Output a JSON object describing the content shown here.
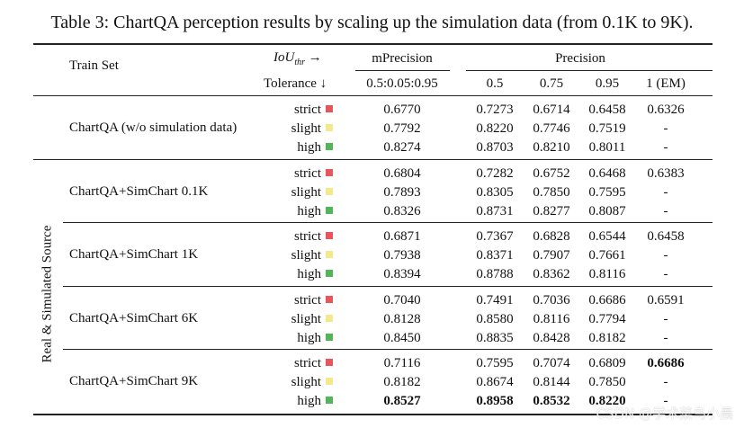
{
  "caption": "Table 3: ChartQA perception results by scaling up the simulation data (from 0.1K to 9K).",
  "header": {
    "train_set": "Train Set",
    "iou_label": "IoU",
    "iou_sub": "thr",
    "iou_arrow": "→",
    "tolerance_label": "Tolerance",
    "tolerance_arrow": "↓",
    "mprecision": "mPrecision",
    "mprecision_range": "0.5:0.05:0.95",
    "precision": "Precision",
    "p_cols": [
      "0.5",
      "0.75",
      "0.95",
      "1 (EM)"
    ]
  },
  "side_label": "Real & Simulated Source",
  "tolerance_colors": {
    "strict": "#e8555b",
    "slight": "#f3e98a",
    "high": "#53b45a"
  },
  "groups": [
    {
      "name": "ChartQA (w/o simulation data)",
      "rows": [
        {
          "tol": "strict",
          "mp": "0.6770",
          "p05": "0.7273",
          "p075": "0.6714",
          "p095": "0.6458",
          "em": "0.6326"
        },
        {
          "tol": "slight",
          "mp": "0.7792",
          "p05": "0.8220",
          "p075": "0.7746",
          "p095": "0.7519",
          "em": "-"
        },
        {
          "tol": "high",
          "mp": "0.8274",
          "p05": "0.8703",
          "p075": "0.8210",
          "p095": "0.8011",
          "em": "-"
        }
      ]
    },
    {
      "name": "ChartQA+SimChart 0.1K",
      "rows": [
        {
          "tol": "strict",
          "mp": "0.6804",
          "p05": "0.7282",
          "p075": "0.6752",
          "p095": "0.6468",
          "em": "0.6383"
        },
        {
          "tol": "slight",
          "mp": "0.7893",
          "p05": "0.8305",
          "p075": "0.7850",
          "p095": "0.7595",
          "em": "-"
        },
        {
          "tol": "high",
          "mp": "0.8326",
          "p05": "0.8731",
          "p075": "0.8277",
          "p095": "0.8087",
          "em": "-"
        }
      ]
    },
    {
      "name": "ChartQA+SimChart 1K",
      "rows": [
        {
          "tol": "strict",
          "mp": "0.6871",
          "p05": "0.7367",
          "p075": "0.6828",
          "p095": "0.6544",
          "em": "0.6458"
        },
        {
          "tol": "slight",
          "mp": "0.7938",
          "p05": "0.8371",
          "p075": "0.7907",
          "p095": "0.7661",
          "em": "-"
        },
        {
          "tol": "high",
          "mp": "0.8394",
          "p05": "0.8788",
          "p075": "0.8362",
          "p095": "0.8116",
          "em": "-"
        }
      ]
    },
    {
      "name": "ChartQA+SimChart 6K",
      "rows": [
        {
          "tol": "strict",
          "mp": "0.7040",
          "p05": "0.7491",
          "p075": "0.7036",
          "p095": "0.6686",
          "em": "0.6591"
        },
        {
          "tol": "slight",
          "mp": "0.8128",
          "p05": "0.8580",
          "p075": "0.8116",
          "p095": "0.7794",
          "em": "-"
        },
        {
          "tol": "high",
          "mp": "0.8450",
          "p05": "0.8835",
          "p075": "0.8428",
          "p095": "0.8182",
          "em": "-"
        }
      ]
    },
    {
      "name": "ChartQA+SimChart 9K",
      "rows": [
        {
          "tol": "strict",
          "mp": "0.7116",
          "p05": "0.7595",
          "p075": "0.7074",
          "p095": "0.6809",
          "em": "0.6686"
        },
        {
          "tol": "slight",
          "mp": "0.8182",
          "p05": "0.8674",
          "p075": "0.8144",
          "p095": "0.7850",
          "em": "-"
        },
        {
          "tol": "high",
          "mp": "0.8527",
          "p05": "0.8958",
          "p075": "0.8532",
          "p095": "0.8220",
          "em": "-"
        }
      ]
    }
  ],
  "bold_cells": [
    {
      "group": 4,
      "row": 0,
      "col": "em"
    },
    {
      "group": 4,
      "row": 2,
      "col": "mp"
    },
    {
      "group": 4,
      "row": 2,
      "col": "p05"
    },
    {
      "group": 4,
      "row": 2,
      "col": "p075"
    },
    {
      "group": 4,
      "row": 2,
      "col": "p095"
    }
  ],
  "watermark": "CSDN @学术菜鸟小晨"
}
